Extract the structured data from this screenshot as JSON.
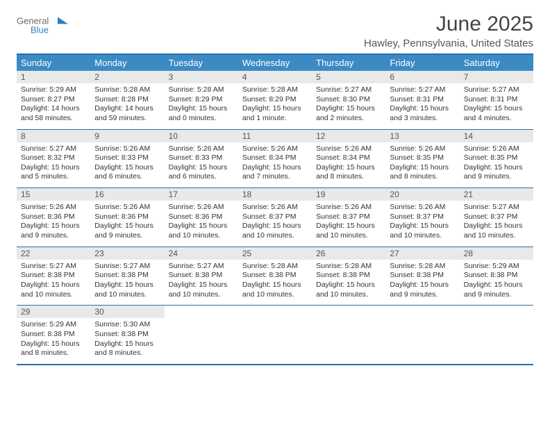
{
  "logo": {
    "word1": "General",
    "word2": "Blue",
    "color1": "#6a6a6a",
    "color2": "#2f7fc1"
  },
  "title": "June 2025",
  "subtitle": "Hawley, Pennsylvania, United States",
  "colors": {
    "header_bg": "#3b8ac4",
    "header_text": "#ffffff",
    "border": "#2c6ca8",
    "daynum_bg": "#e9e9e9",
    "text": "#333333"
  },
  "weekdays": [
    "Sunday",
    "Monday",
    "Tuesday",
    "Wednesday",
    "Thursday",
    "Friday",
    "Saturday"
  ],
  "weeks": [
    [
      {
        "n": "1",
        "sunrise": "5:29 AM",
        "sunset": "8:27 PM",
        "daylight": "14 hours and 58 minutes."
      },
      {
        "n": "2",
        "sunrise": "5:28 AM",
        "sunset": "8:28 PM",
        "daylight": "14 hours and 59 minutes."
      },
      {
        "n": "3",
        "sunrise": "5:28 AM",
        "sunset": "8:29 PM",
        "daylight": "15 hours and 0 minutes."
      },
      {
        "n": "4",
        "sunrise": "5:28 AM",
        "sunset": "8:29 PM",
        "daylight": "15 hours and 1 minute."
      },
      {
        "n": "5",
        "sunrise": "5:27 AM",
        "sunset": "8:30 PM",
        "daylight": "15 hours and 2 minutes."
      },
      {
        "n": "6",
        "sunrise": "5:27 AM",
        "sunset": "8:31 PM",
        "daylight": "15 hours and 3 minutes."
      },
      {
        "n": "7",
        "sunrise": "5:27 AM",
        "sunset": "8:31 PM",
        "daylight": "15 hours and 4 minutes."
      }
    ],
    [
      {
        "n": "8",
        "sunrise": "5:27 AM",
        "sunset": "8:32 PM",
        "daylight": "15 hours and 5 minutes."
      },
      {
        "n": "9",
        "sunrise": "5:26 AM",
        "sunset": "8:33 PM",
        "daylight": "15 hours and 6 minutes."
      },
      {
        "n": "10",
        "sunrise": "5:26 AM",
        "sunset": "8:33 PM",
        "daylight": "15 hours and 6 minutes."
      },
      {
        "n": "11",
        "sunrise": "5:26 AM",
        "sunset": "8:34 PM",
        "daylight": "15 hours and 7 minutes."
      },
      {
        "n": "12",
        "sunrise": "5:26 AM",
        "sunset": "8:34 PM",
        "daylight": "15 hours and 8 minutes."
      },
      {
        "n": "13",
        "sunrise": "5:26 AM",
        "sunset": "8:35 PM",
        "daylight": "15 hours and 8 minutes."
      },
      {
        "n": "14",
        "sunrise": "5:26 AM",
        "sunset": "8:35 PM",
        "daylight": "15 hours and 9 minutes."
      }
    ],
    [
      {
        "n": "15",
        "sunrise": "5:26 AM",
        "sunset": "8:36 PM",
        "daylight": "15 hours and 9 minutes."
      },
      {
        "n": "16",
        "sunrise": "5:26 AM",
        "sunset": "8:36 PM",
        "daylight": "15 hours and 9 minutes."
      },
      {
        "n": "17",
        "sunrise": "5:26 AM",
        "sunset": "8:36 PM",
        "daylight": "15 hours and 10 minutes."
      },
      {
        "n": "18",
        "sunrise": "5:26 AM",
        "sunset": "8:37 PM",
        "daylight": "15 hours and 10 minutes."
      },
      {
        "n": "19",
        "sunrise": "5:26 AM",
        "sunset": "8:37 PM",
        "daylight": "15 hours and 10 minutes."
      },
      {
        "n": "20",
        "sunrise": "5:26 AM",
        "sunset": "8:37 PM",
        "daylight": "15 hours and 10 minutes."
      },
      {
        "n": "21",
        "sunrise": "5:27 AM",
        "sunset": "8:37 PM",
        "daylight": "15 hours and 10 minutes."
      }
    ],
    [
      {
        "n": "22",
        "sunrise": "5:27 AM",
        "sunset": "8:38 PM",
        "daylight": "15 hours and 10 minutes."
      },
      {
        "n": "23",
        "sunrise": "5:27 AM",
        "sunset": "8:38 PM",
        "daylight": "15 hours and 10 minutes."
      },
      {
        "n": "24",
        "sunrise": "5:27 AM",
        "sunset": "8:38 PM",
        "daylight": "15 hours and 10 minutes."
      },
      {
        "n": "25",
        "sunrise": "5:28 AM",
        "sunset": "8:38 PM",
        "daylight": "15 hours and 10 minutes."
      },
      {
        "n": "26",
        "sunrise": "5:28 AM",
        "sunset": "8:38 PM",
        "daylight": "15 hours and 10 minutes."
      },
      {
        "n": "27",
        "sunrise": "5:28 AM",
        "sunset": "8:38 PM",
        "daylight": "15 hours and 9 minutes."
      },
      {
        "n": "28",
        "sunrise": "5:29 AM",
        "sunset": "8:38 PM",
        "daylight": "15 hours and 9 minutes."
      }
    ],
    [
      {
        "n": "29",
        "sunrise": "5:29 AM",
        "sunset": "8:38 PM",
        "daylight": "15 hours and 8 minutes."
      },
      {
        "n": "30",
        "sunrise": "5:30 AM",
        "sunset": "8:38 PM",
        "daylight": "15 hours and 8 minutes."
      },
      {
        "n": "",
        "empty": true
      },
      {
        "n": "",
        "empty": true
      },
      {
        "n": "",
        "empty": true
      },
      {
        "n": "",
        "empty": true
      },
      {
        "n": "",
        "empty": true
      }
    ]
  ],
  "labels": {
    "sunrise": "Sunrise:",
    "sunset": "Sunset:",
    "daylight": "Daylight:"
  }
}
